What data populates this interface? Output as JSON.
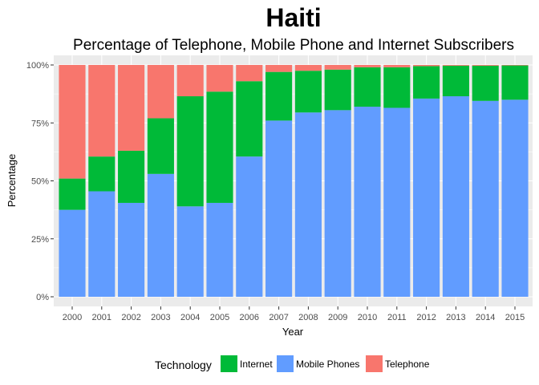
{
  "chart_data": {
    "type": "bar",
    "stacked": true,
    "title": "Haiti",
    "subtitle": "Percentage of Telephone, Mobile Phone and Internet Subscribers",
    "xlabel": "Year",
    "ylabel": "Percentage",
    "ylim": [
      0,
      100
    ],
    "yticks": [
      "0%",
      "25%",
      "50%",
      "75%",
      "100%"
    ],
    "ytick_values": [
      0,
      25,
      50,
      75,
      100
    ],
    "categories": [
      "2000",
      "2001",
      "2002",
      "2003",
      "2004",
      "2005",
      "2006",
      "2007",
      "2008",
      "2009",
      "2010",
      "2011",
      "2012",
      "2013",
      "2014",
      "2015"
    ],
    "series": [
      {
        "name": "Mobile Phones",
        "color": "#619CFF",
        "values": [
          37.5,
          45.5,
          40.5,
          53,
          39,
          40.5,
          60.5,
          76,
          79.5,
          80.5,
          82,
          81.5,
          85.5,
          86.5,
          84.5,
          85
        ]
      },
      {
        "name": "Internet",
        "color": "#00BA38",
        "values": [
          13.5,
          15,
          22.5,
          24,
          47.5,
          48,
          32.5,
          21,
          18,
          17.5,
          17,
          17.5,
          14,
          13.2,
          15.2,
          14.8
        ]
      },
      {
        "name": "Telephone",
        "color": "#F8766D",
        "values": [
          49,
          39.5,
          37,
          23,
          13.5,
          11.5,
          7,
          3,
          2.5,
          2,
          1,
          1,
          0.5,
          0.3,
          0.3,
          0.2
        ]
      }
    ],
    "legend": {
      "title": "Technology",
      "position": "bottom",
      "entries": [
        {
          "label": "Internet",
          "color": "#00BA38"
        },
        {
          "label": "Mobile Phones",
          "color": "#619CFF"
        },
        {
          "label": "Telephone",
          "color": "#F8766D"
        }
      ]
    },
    "grid": true,
    "panel_background": "#EBEBEB"
  }
}
